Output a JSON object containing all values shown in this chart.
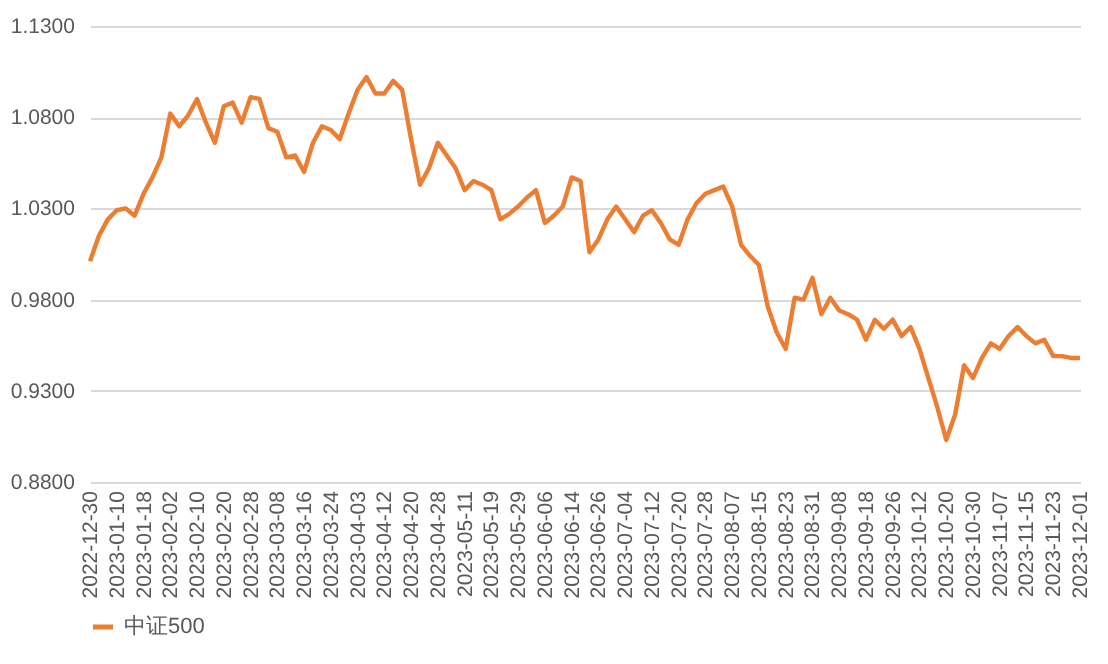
{
  "chart_data": {
    "type": "line",
    "categories": [
      "2022-12-30",
      null,
      null,
      "2023-01-10",
      null,
      null,
      "2023-01-18",
      null,
      null,
      "2023-02-02",
      null,
      null,
      "2023-02-10",
      null,
      null,
      "2023-02-20",
      null,
      null,
      "2023-02-28",
      null,
      null,
      "2023-03-08",
      null,
      null,
      "2023-03-16",
      null,
      null,
      "2023-03-24",
      null,
      null,
      "2023-04-03",
      null,
      null,
      "2023-04-12",
      null,
      null,
      "2023-04-20",
      null,
      null,
      "2023-04-28",
      null,
      null,
      "2023-05-11",
      null,
      null,
      "2023-05-19",
      null,
      null,
      "2023-05-29",
      null,
      null,
      "2023-06-06",
      null,
      null,
      "2023-06-14",
      null,
      null,
      "2023-06-26",
      null,
      null,
      "2023-07-04",
      null,
      null,
      "2023-07-12",
      null,
      null,
      "2023-07-20",
      null,
      null,
      "2023-07-28",
      null,
      null,
      "2023-08-07",
      null,
      null,
      "2023-08-15",
      null,
      null,
      "2023-08-23",
      null,
      null,
      "2023-08-31",
      null,
      null,
      "2023-09-08",
      null,
      null,
      "2023-09-18",
      null,
      null,
      "2023-09-26",
      null,
      null,
      "2023-10-12",
      null,
      null,
      "2023-10-20",
      null,
      null,
      "2023-10-30",
      null,
      null,
      "2023-11-07",
      null,
      null,
      "2023-11-15",
      null,
      null,
      "2023-11-23",
      null,
      null,
      "2023-12-01"
    ],
    "series": [
      {
        "name": "中证500",
        "color": "#ed7d31",
        "values": [
          1.001,
          1.015,
          1.024,
          1.029,
          1.03,
          1.026,
          1.038,
          1.047,
          1.058,
          1.082,
          1.075,
          1.081,
          1.09,
          1.077,
          1.066,
          1.086,
          1.088,
          1.077,
          1.091,
          1.09,
          1.074,
          1.072,
          1.058,
          1.059,
          1.05,
          1.066,
          1.075,
          1.073,
          1.068,
          1.082,
          1.095,
          1.102,
          1.093,
          1.093,
          1.1,
          1.095,
          1.068,
          1.043,
          1.052,
          1.066,
          1.059,
          1.052,
          1.04,
          1.045,
          1.043,
          1.04,
          1.024,
          1.027,
          1.031,
          1.036,
          1.04,
          1.022,
          1.026,
          1.031,
          1.047,
          1.045,
          1.006,
          1.013,
          1.024,
          1.031,
          1.024,
          1.017,
          1.026,
          1.029,
          1.022,
          1.013,
          1.01,
          1.024,
          1.033,
          1.038,
          1.04,
          1.042,
          1.031,
          1.01,
          1.004,
          0.999,
          0.976,
          0.962,
          0.953,
          0.981,
          0.98,
          0.992,
          0.972,
          0.981,
          0.974,
          0.972,
          0.969,
          0.958,
          0.969,
          0.964,
          0.969,
          0.96,
          0.965,
          0.953,
          0.937,
          0.921,
          0.903,
          0.917,
          0.944,
          0.937,
          0.948,
          0.956,
          0.953,
          0.96,
          0.965,
          0.96,
          0.956,
          0.958,
          0.949,
          0.949,
          0.948,
          0.948
        ]
      }
    ],
    "ylim": [
      0.88,
      1.13
    ],
    "yticks": [
      {
        "value": 0.88,
        "label": "0.8800"
      },
      {
        "value": 0.93,
        "label": "0.9300"
      },
      {
        "value": 0.98,
        "label": "0.9800"
      },
      {
        "value": 1.03,
        "label": "1.0300"
      },
      {
        "value": 1.08,
        "label": "1.0800"
      },
      {
        "value": 1.13,
        "label": "1.1300"
      }
    ],
    "grid": "y",
    "legend": "bottom",
    "marker": "none",
    "line_style": "solid"
  }
}
